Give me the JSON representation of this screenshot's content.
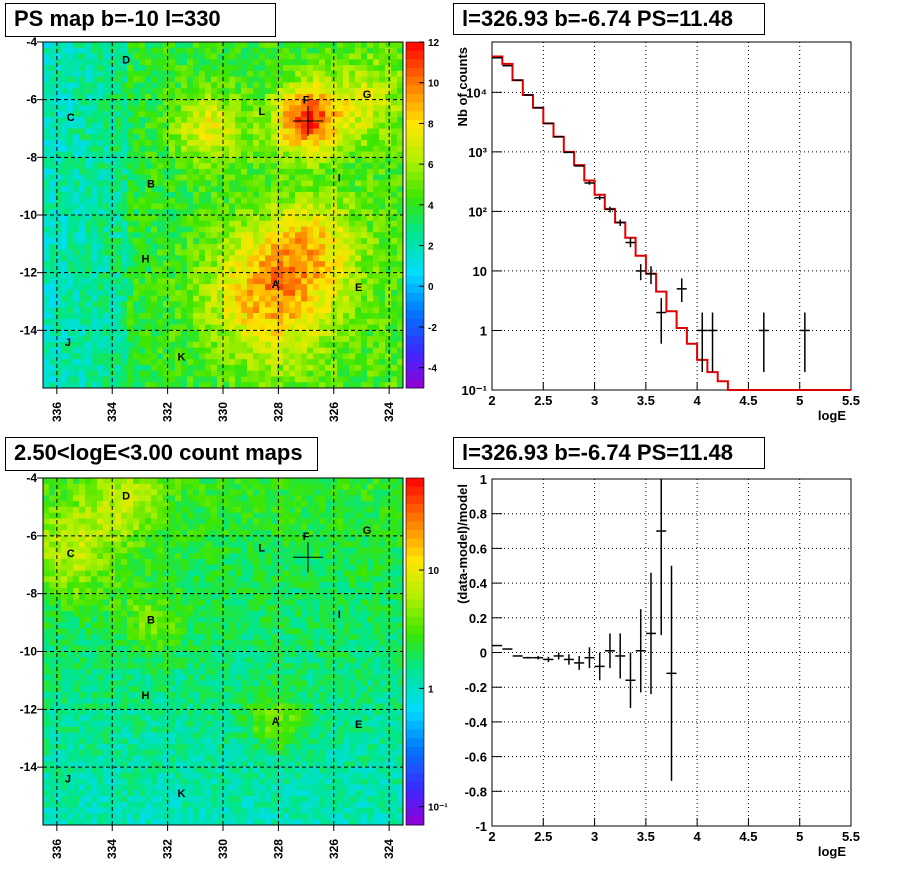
{
  "panels": {
    "tl_title": "PS map b=-10 l=330",
    "tr_title": "l=326.93 b=-6.74 PS=11.48",
    "bl_title": "2.50<logE<3.00 count maps",
    "br_title": "l=326.93 b=-6.74 PS=11.48"
  },
  "colors": {
    "model_line": "#e00000",
    "data_points": "#000000",
    "grid": "#000000"
  },
  "chart_data": [
    {
      "type": "heatmap",
      "title": "PS map b=-10 l=330",
      "x_ticks": [
        "336",
        "334",
        "332",
        "330",
        "328",
        "326",
        "324"
      ],
      "x_tick_values": [
        336,
        334,
        332,
        330,
        328,
        326,
        324
      ],
      "xlim": [
        336.5,
        323.5
      ],
      "y_ticks": [
        "-4",
        "-6",
        "-8",
        "-10",
        "-12",
        "-14"
      ],
      "y_tick_values": [
        -4,
        -6,
        -8,
        -10,
        -12,
        -14
      ],
      "ylim": [
        -16,
        -4
      ],
      "colorbar": {
        "scale": "linear",
        "min": -5,
        "max": 12,
        "ticks": [
          "12",
          "10",
          "8",
          "6",
          "4",
          "2",
          "0",
          "-2",
          "-4"
        ],
        "tick_values": [
          12,
          10,
          8,
          6,
          4,
          2,
          0,
          -2,
          -4
        ]
      },
      "marker": {
        "l": 326.93,
        "b": -6.74
      },
      "sources": [
        {
          "name": "D",
          "l": 333.5,
          "b": -4.6
        },
        {
          "name": "F",
          "l": 327.0,
          "b": -6.0
        },
        {
          "name": "G",
          "l": 324.8,
          "b": -5.8
        },
        {
          "name": "L",
          "l": 328.6,
          "b": -6.4
        },
        {
          "name": "C",
          "l": 335.5,
          "b": -6.6
        },
        {
          "name": "I",
          "l": 325.8,
          "b": -8.7
        },
        {
          "name": "B",
          "l": 332.6,
          "b": -8.9
        },
        {
          "name": "H",
          "l": 332.8,
          "b": -11.5
        },
        {
          "name": "A",
          "l": 328.1,
          "b": -12.4
        },
        {
          "name": "E",
          "l": 325.1,
          "b": -12.5
        },
        {
          "name": "J",
          "l": 335.6,
          "b": -14.4
        },
        {
          "name": "K",
          "l": 331.5,
          "b": -14.9
        }
      ],
      "hotspots": [
        {
          "l": 327.0,
          "b": -6.7,
          "amp": 7,
          "width": 0.8
        },
        {
          "l": 328.3,
          "b": -12.8,
          "amp": 5,
          "width": 1.6
        },
        {
          "l": 330.5,
          "b": -7.0,
          "amp": 3.5,
          "width": 0.9
        },
        {
          "l": 326.8,
          "b": -11.0,
          "amp": 3,
          "width": 1.2
        },
        {
          "l": 325.0,
          "b": -6.0,
          "amp": 2.5,
          "width": 1.0
        }
      ]
    },
    {
      "type": "line",
      "title": "l=326.93 b=-6.74 PS=11.48",
      "xlabel": "logE",
      "ylabel": "Nb of counts",
      "xlim": [
        2,
        5.5
      ],
      "ylim": [
        0.1,
        70000
      ],
      "yscale": "log",
      "grid": true,
      "x_ticks": [
        "2",
        "2.5",
        "3",
        "3.5",
        "4",
        "4.5",
        "5",
        "5.5"
      ],
      "x_tick_values": [
        2,
        2.5,
        3,
        3.5,
        4,
        4.5,
        5,
        5.5
      ],
      "y_ticks": [
        "10⁻¹",
        "1",
        "10",
        "10²",
        "10³",
        "10⁴"
      ],
      "y_tick_values": [
        0.1,
        1,
        10,
        100,
        1000,
        10000
      ],
      "model_bin_width": 0.1,
      "model_bin_starts": [
        2.0,
        2.1,
        2.2,
        2.3,
        2.4,
        2.5,
        2.6,
        2.7,
        2.8,
        2.9,
        3.0,
        3.1,
        3.2,
        3.3,
        3.4,
        3.5,
        3.6,
        3.7,
        3.8,
        3.9,
        4.0,
        4.1,
        4.2,
        4.3,
        4.4,
        4.5,
        4.6,
        4.7,
        4.8,
        4.9,
        5.0,
        5.1,
        5.2,
        5.3,
        5.4
      ],
      "model_values": [
        40000,
        30000,
        16000,
        9000,
        5500,
        3000,
        1800,
        1000,
        600,
        330,
        190,
        110,
        65,
        36,
        18,
        9,
        4.5,
        2.1,
        1.1,
        0.6,
        0.32,
        0.2,
        0.14,
        0.1,
        0.1,
        0.1,
        0.1,
        0.1,
        0.1,
        0.1,
        0.1,
        0.1,
        0.1,
        0.1,
        0.1
      ],
      "data_points": [
        {
          "x": 2.05,
          "y": 38000,
          "ylo": 38000,
          "yhi": 38000
        },
        {
          "x": 2.15,
          "y": 28000,
          "ylo": 28000,
          "yhi": 28000
        },
        {
          "x": 2.25,
          "y": 16000,
          "ylo": 16000,
          "yhi": 16000
        },
        {
          "x": 2.35,
          "y": 9000,
          "ylo": 9000,
          "yhi": 9000
        },
        {
          "x": 2.45,
          "y": 5500,
          "ylo": 5500,
          "yhi": 5500
        },
        {
          "x": 2.55,
          "y": 3000,
          "ylo": 3000,
          "yhi": 3000
        },
        {
          "x": 2.65,
          "y": 1800,
          "ylo": 1800,
          "yhi": 1800
        },
        {
          "x": 2.75,
          "y": 980,
          "ylo": 980,
          "yhi": 980
        },
        {
          "x": 2.85,
          "y": 580,
          "ylo": 580,
          "yhi": 580
        },
        {
          "x": 2.95,
          "y": 300,
          "ylo": 280,
          "yhi": 320
        },
        {
          "x": 3.05,
          "y": 170,
          "ylo": 155,
          "yhi": 185
        },
        {
          "x": 3.15,
          "y": 108,
          "ylo": 96,
          "yhi": 120
        },
        {
          "x": 3.25,
          "y": 65,
          "ylo": 57,
          "yhi": 73
        },
        {
          "x": 3.35,
          "y": 30,
          "ylo": 25,
          "yhi": 36
        },
        {
          "x": 3.45,
          "y": 10,
          "ylo": 7,
          "yhi": 13
        },
        {
          "x": 3.55,
          "y": 9,
          "ylo": 6,
          "yhi": 12
        },
        {
          "x": 3.65,
          "y": 2,
          "ylo": 0.6,
          "yhi": 3.5
        },
        {
          "x": 3.85,
          "y": 5,
          "ylo": 3,
          "yhi": 7.5
        },
        {
          "x": 4.05,
          "y": 1,
          "ylo": 0.2,
          "yhi": 2
        },
        {
          "x": 4.15,
          "y": 1,
          "ylo": 0.2,
          "yhi": 2
        },
        {
          "x": 4.65,
          "y": 1,
          "ylo": 0.2,
          "yhi": 2
        },
        {
          "x": 5.05,
          "y": 1,
          "ylo": 0.2,
          "yhi": 2
        }
      ]
    },
    {
      "type": "heatmap",
      "title": "2.50<logE<3.00 count maps",
      "x_ticks": [
        "336",
        "334",
        "332",
        "330",
        "328",
        "326",
        "324"
      ],
      "x_tick_values": [
        336,
        334,
        332,
        330,
        328,
        326,
        324
      ],
      "xlim": [
        336.5,
        323.5
      ],
      "y_ticks": [
        "-4",
        "-6",
        "-8",
        "-10",
        "-12",
        "-14"
      ],
      "y_tick_values": [
        -4,
        -6,
        -8,
        -10,
        -12,
        -14
      ],
      "ylim": [
        -16,
        -4
      ],
      "colorbar": {
        "scale": "log",
        "min": 0.07,
        "max": 60,
        "ticks": [
          "10",
          "1",
          "10⁻¹"
        ],
        "tick_values": [
          10,
          1,
          0.1
        ]
      },
      "marker": {
        "l": 326.93,
        "b": -6.74
      },
      "sources": [
        {
          "name": "D",
          "l": 333.5,
          "b": -4.6
        },
        {
          "name": "F",
          "l": 327.0,
          "b": -6.0
        },
        {
          "name": "G",
          "l": 324.8,
          "b": -5.8
        },
        {
          "name": "L",
          "l": 328.6,
          "b": -6.4
        },
        {
          "name": "C",
          "l": 335.5,
          "b": -6.6
        },
        {
          "name": "I",
          "l": 325.8,
          "b": -8.7
        },
        {
          "name": "B",
          "l": 332.6,
          "b": -8.9
        },
        {
          "name": "H",
          "l": 332.8,
          "b": -11.5
        },
        {
          "name": "A",
          "l": 328.1,
          "b": -12.4
        },
        {
          "name": "E",
          "l": 325.1,
          "b": -12.5
        },
        {
          "name": "J",
          "l": 335.6,
          "b": -14.4
        },
        {
          "name": "K",
          "l": 331.5,
          "b": -14.9
        }
      ],
      "hotspots": [
        {
          "l": 335.5,
          "b": -6.6,
          "amp": 0.5,
          "width": 1.2
        },
        {
          "l": 333.5,
          "b": -4.8,
          "amp": 0.4,
          "width": 1.0
        },
        {
          "l": 332.6,
          "b": -9.0,
          "amp": 0.35,
          "width": 0.8
        },
        {
          "l": 328.1,
          "b": -12.4,
          "amp": 0.5,
          "width": 0.7
        }
      ]
    },
    {
      "type": "scatter",
      "title": "l=326.93 b=-6.74 PS=11.48",
      "xlabel": "logE",
      "ylabel": "(data-model)/model",
      "xlim": [
        2,
        5.5
      ],
      "ylim": [
        -1,
        1
      ],
      "grid": true,
      "x_ticks": [
        "2",
        "2.5",
        "3",
        "3.5",
        "4",
        "4.5",
        "5",
        "5.5"
      ],
      "x_tick_values": [
        2,
        2.5,
        3,
        3.5,
        4,
        4.5,
        5,
        5.5
      ],
      "y_ticks": [
        "1",
        "0.8",
        "0.6",
        "0.4",
        "0.2",
        "0",
        "-0.2",
        "-0.4",
        "-0.6",
        "-0.8",
        "-1"
      ],
      "y_tick_values": [
        1,
        0.8,
        0.6,
        0.4,
        0.2,
        0,
        -0.2,
        -0.4,
        -0.6,
        -0.8,
        -1
      ],
      "points": [
        {
          "x": 2.05,
          "y": 0.04,
          "err": 0.0
        },
        {
          "x": 2.15,
          "y": 0.02,
          "err": 0.0
        },
        {
          "x": 2.25,
          "y": -0.02,
          "err": 0.0
        },
        {
          "x": 2.35,
          "y": -0.03,
          "err": 0.005
        },
        {
          "x": 2.45,
          "y": -0.03,
          "err": 0.01
        },
        {
          "x": 2.55,
          "y": -0.04,
          "err": 0.015
        },
        {
          "x": 2.65,
          "y": -0.02,
          "err": 0.02
        },
        {
          "x": 2.75,
          "y": -0.04,
          "err": 0.03
        },
        {
          "x": 2.85,
          "y": -0.06,
          "err": 0.04
        },
        {
          "x": 2.95,
          "y": -0.03,
          "err": 0.06
        },
        {
          "x": 3.05,
          "y": -0.08,
          "err": 0.08
        },
        {
          "x": 3.15,
          "y": 0.01,
          "err": 0.1
        },
        {
          "x": 3.25,
          "y": -0.02,
          "err": 0.13
        },
        {
          "x": 3.35,
          "y": -0.16,
          "err": 0.16
        },
        {
          "x": 3.45,
          "y": 0.01,
          "err": 0.24
        },
        {
          "x": 3.55,
          "y": 0.11,
          "err": 0.35
        },
        {
          "x": 3.65,
          "y": 0.7,
          "err": 0.6
        },
        {
          "x": 3.75,
          "y": -0.12,
          "err": 0.62
        }
      ]
    }
  ]
}
